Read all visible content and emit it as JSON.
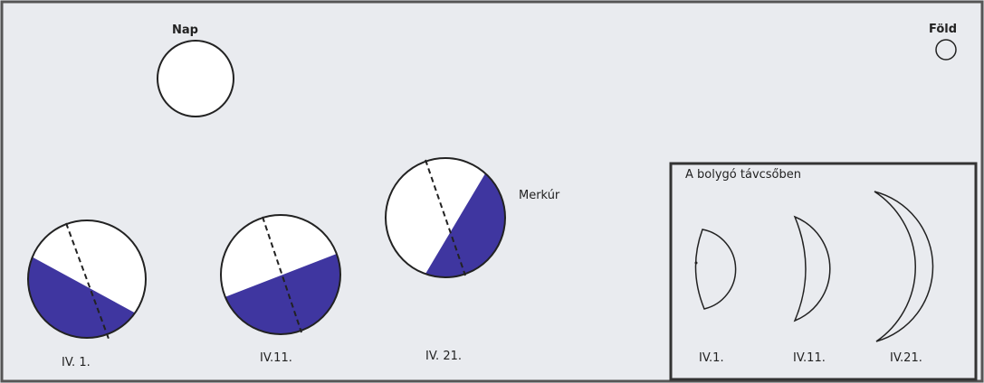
{
  "sun": "Nap",
  "earth": "Föld",
  "planet": "Merkúr",
  "positions": [
    "IV. 1.",
    "IV.11.",
    "IV. 21."
  ],
  "telescope": {
    "title": "A bolygó távcsőben",
    "labels": [
      "IV.1.",
      "IV.11.",
      "IV.21."
    ]
  }
}
